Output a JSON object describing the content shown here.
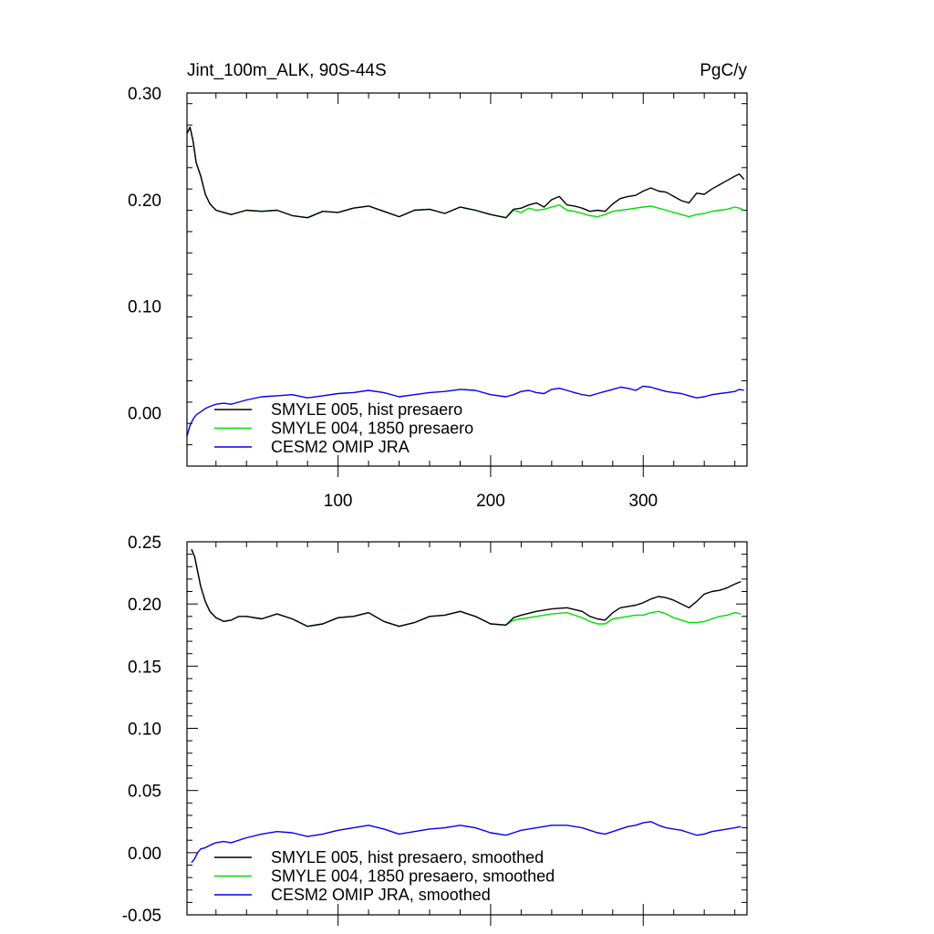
{
  "chart_data": [
    {
      "type": "line",
      "title": "Jint_100m_ALK, 90S-44S",
      "units": "PgC/y",
      "xlim": [
        1,
        368
      ],
      "ylim": [
        -0.05,
        0.3
      ],
      "yticks": [
        "0.30",
        "0.20",
        "0.10",
        "0.00"
      ],
      "ytick_values": [
        0.3,
        0.2,
        0.1,
        0.0
      ],
      "xticks": [
        "100",
        "200",
        "300"
      ],
      "xtick_values": [
        100,
        200,
        300
      ],
      "legend_position": "lower-left",
      "series": [
        {
          "name": "SMYLE 005, hist presaero",
          "color": "#000000",
          "x": [
            1,
            3,
            5,
            7,
            10,
            13,
            16,
            20,
            25,
            30,
            40,
            50,
            60,
            70,
            80,
            90,
            100,
            110,
            120,
            130,
            140,
            150,
            160,
            170,
            180,
            190,
            200,
            210,
            215,
            220,
            225,
            230,
            235,
            240,
            245,
            250,
            255,
            260,
            265,
            270,
            275,
            280,
            285,
            290,
            295,
            300,
            305,
            310,
            315,
            320,
            325,
            330,
            335,
            340,
            345,
            350,
            355,
            360,
            363,
            366
          ],
          "values": [
            0.262,
            0.268,
            0.255,
            0.235,
            0.222,
            0.205,
            0.196,
            0.19,
            0.188,
            0.186,
            0.19,
            0.189,
            0.19,
            0.185,
            0.183,
            0.189,
            0.188,
            0.192,
            0.194,
            0.189,
            0.184,
            0.19,
            0.191,
            0.187,
            0.193,
            0.19,
            0.186,
            0.183,
            0.191,
            0.192,
            0.195,
            0.197,
            0.193,
            0.2,
            0.203,
            0.195,
            0.194,
            0.192,
            0.189,
            0.19,
            0.189,
            0.196,
            0.201,
            0.203,
            0.204,
            0.208,
            0.211,
            0.208,
            0.207,
            0.203,
            0.199,
            0.197,
            0.206,
            0.205,
            0.21,
            0.214,
            0.218,
            0.222,
            0.224,
            0.219
          ]
        },
        {
          "name": "SMYLE 004, 1850 presaero",
          "color": "#00dd00",
          "x": [
            1,
            3,
            5,
            7,
            10,
            13,
            16,
            20,
            25,
            30,
            40,
            50,
            60,
            70,
            80,
            90,
            100,
            110,
            120,
            130,
            140,
            150,
            160,
            170,
            180,
            190,
            200,
            210,
            215,
            220,
            225,
            230,
            235,
            240,
            245,
            250,
            255,
            260,
            265,
            270,
            275,
            280,
            285,
            290,
            295,
            300,
            305,
            310,
            315,
            320,
            325,
            330,
            335,
            340,
            345,
            350,
            355,
            360,
            363,
            366
          ],
          "values": [
            0.262,
            0.268,
            0.255,
            0.235,
            0.222,
            0.205,
            0.196,
            0.19,
            0.188,
            0.186,
            0.19,
            0.189,
            0.19,
            0.185,
            0.183,
            0.189,
            0.188,
            0.192,
            0.194,
            0.189,
            0.184,
            0.19,
            0.191,
            0.187,
            0.193,
            0.19,
            0.186,
            0.183,
            0.19,
            0.188,
            0.192,
            0.19,
            0.191,
            0.193,
            0.195,
            0.19,
            0.189,
            0.187,
            0.185,
            0.184,
            0.186,
            0.189,
            0.19,
            0.191,
            0.192,
            0.193,
            0.194,
            0.192,
            0.19,
            0.188,
            0.186,
            0.184,
            0.186,
            0.187,
            0.189,
            0.19,
            0.191,
            0.193,
            0.192,
            0.19
          ]
        },
        {
          "name": "CESM2 OMIP JRA",
          "color": "#0000ee",
          "x": [
            1,
            3,
            5,
            7,
            10,
            13,
            16,
            20,
            25,
            30,
            40,
            50,
            60,
            70,
            80,
            90,
            100,
            110,
            120,
            130,
            140,
            150,
            160,
            170,
            180,
            190,
            200,
            210,
            215,
            220,
            225,
            230,
            235,
            240,
            245,
            250,
            255,
            260,
            265,
            270,
            275,
            280,
            285,
            290,
            295,
            300,
            305,
            310,
            315,
            320,
            325,
            330,
            335,
            340,
            345,
            350,
            355,
            360,
            363,
            366
          ],
          "values": [
            -0.022,
            -0.012,
            -0.006,
            -0.002,
            0.001,
            0.004,
            0.006,
            0.008,
            0.009,
            0.008,
            0.012,
            0.015,
            0.016,
            0.017,
            0.014,
            0.016,
            0.018,
            0.019,
            0.021,
            0.019,
            0.015,
            0.017,
            0.019,
            0.02,
            0.022,
            0.021,
            0.017,
            0.015,
            0.017,
            0.02,
            0.021,
            0.019,
            0.018,
            0.022,
            0.023,
            0.021,
            0.019,
            0.017,
            0.016,
            0.018,
            0.02,
            0.022,
            0.024,
            0.023,
            0.021,
            0.025,
            0.024,
            0.022,
            0.02,
            0.019,
            0.018,
            0.016,
            0.014,
            0.015,
            0.017,
            0.018,
            0.019,
            0.02,
            0.022,
            0.021
          ]
        }
      ]
    },
    {
      "type": "line",
      "title": "",
      "xlim": [
        1,
        368
      ],
      "ylim": [
        -0.05,
        0.25
      ],
      "yticks": [
        "0.25",
        "0.20",
        "0.15",
        "0.10",
        "0.05",
        "0.00",
        "-0.05"
      ],
      "ytick_values": [
        0.25,
        0.2,
        0.15,
        0.1,
        0.05,
        0.0,
        -0.05
      ],
      "legend_position": "lower-left",
      "series": [
        {
          "name": "SMYLE 005, hist presaero, smoothed",
          "color": "#000000",
          "x": [
            4,
            6,
            8,
            10,
            13,
            16,
            20,
            25,
            30,
            35,
            40,
            50,
            60,
            70,
            80,
            90,
            100,
            110,
            120,
            130,
            140,
            150,
            160,
            170,
            180,
            190,
            200,
            210,
            215,
            220,
            230,
            240,
            250,
            260,
            265,
            270,
            275,
            280,
            285,
            290,
            295,
            300,
            305,
            310,
            315,
            320,
            325,
            330,
            335,
            340,
            345,
            350,
            355,
            360,
            364
          ],
          "values": [
            0.244,
            0.238,
            0.226,
            0.214,
            0.202,
            0.194,
            0.189,
            0.186,
            0.187,
            0.19,
            0.19,
            0.188,
            0.192,
            0.188,
            0.182,
            0.184,
            0.189,
            0.19,
            0.193,
            0.186,
            0.182,
            0.185,
            0.19,
            0.191,
            0.194,
            0.19,
            0.184,
            0.183,
            0.189,
            0.191,
            0.194,
            0.196,
            0.197,
            0.194,
            0.19,
            0.188,
            0.187,
            0.193,
            0.197,
            0.198,
            0.199,
            0.201,
            0.204,
            0.206,
            0.205,
            0.203,
            0.2,
            0.197,
            0.202,
            0.208,
            0.21,
            0.211,
            0.213,
            0.216,
            0.218
          ]
        },
        {
          "name": "SMYLE 004, 1850 presaero, smoothed",
          "color": "#00dd00",
          "x": [
            4,
            6,
            8,
            10,
            13,
            16,
            20,
            25,
            30,
            35,
            40,
            50,
            60,
            70,
            80,
            90,
            100,
            110,
            120,
            130,
            140,
            150,
            160,
            170,
            180,
            190,
            200,
            210,
            215,
            220,
            230,
            240,
            250,
            260,
            265,
            270,
            275,
            280,
            285,
            290,
            295,
            300,
            305,
            310,
            315,
            320,
            325,
            330,
            335,
            340,
            345,
            350,
            355,
            360,
            364
          ],
          "values": [
            0.244,
            0.238,
            0.226,
            0.214,
            0.202,
            0.194,
            0.189,
            0.186,
            0.187,
            0.19,
            0.19,
            0.188,
            0.192,
            0.188,
            0.182,
            0.184,
            0.189,
            0.19,
            0.193,
            0.186,
            0.182,
            0.185,
            0.19,
            0.191,
            0.194,
            0.19,
            0.184,
            0.183,
            0.187,
            0.188,
            0.19,
            0.192,
            0.193,
            0.189,
            0.186,
            0.184,
            0.184,
            0.188,
            0.189,
            0.19,
            0.191,
            0.191,
            0.193,
            0.194,
            0.192,
            0.189,
            0.187,
            0.185,
            0.185,
            0.186,
            0.188,
            0.19,
            0.191,
            0.193,
            0.192
          ]
        },
        {
          "name": "CESM2 OMIP JRA, smoothed",
          "color": "#0000ee",
          "x": [
            4,
            6,
            8,
            10,
            13,
            16,
            20,
            25,
            30,
            35,
            40,
            50,
            60,
            70,
            80,
            90,
            100,
            110,
            120,
            130,
            140,
            150,
            160,
            170,
            180,
            190,
            200,
            210,
            215,
            220,
            230,
            240,
            250,
            260,
            265,
            270,
            275,
            280,
            285,
            290,
            295,
            300,
            305,
            310,
            315,
            320,
            325,
            330,
            335,
            340,
            345,
            350,
            355,
            360,
            364
          ],
          "values": [
            -0.008,
            -0.005,
            0.0,
            0.003,
            0.004,
            0.006,
            0.008,
            0.009,
            0.008,
            0.01,
            0.012,
            0.015,
            0.017,
            0.016,
            0.013,
            0.015,
            0.018,
            0.02,
            0.022,
            0.019,
            0.015,
            0.017,
            0.019,
            0.02,
            0.022,
            0.02,
            0.016,
            0.014,
            0.016,
            0.018,
            0.02,
            0.022,
            0.022,
            0.02,
            0.018,
            0.016,
            0.015,
            0.017,
            0.019,
            0.021,
            0.022,
            0.024,
            0.025,
            0.022,
            0.02,
            0.019,
            0.018,
            0.016,
            0.014,
            0.015,
            0.017,
            0.018,
            0.019,
            0.02,
            0.021
          ]
        }
      ]
    }
  ]
}
